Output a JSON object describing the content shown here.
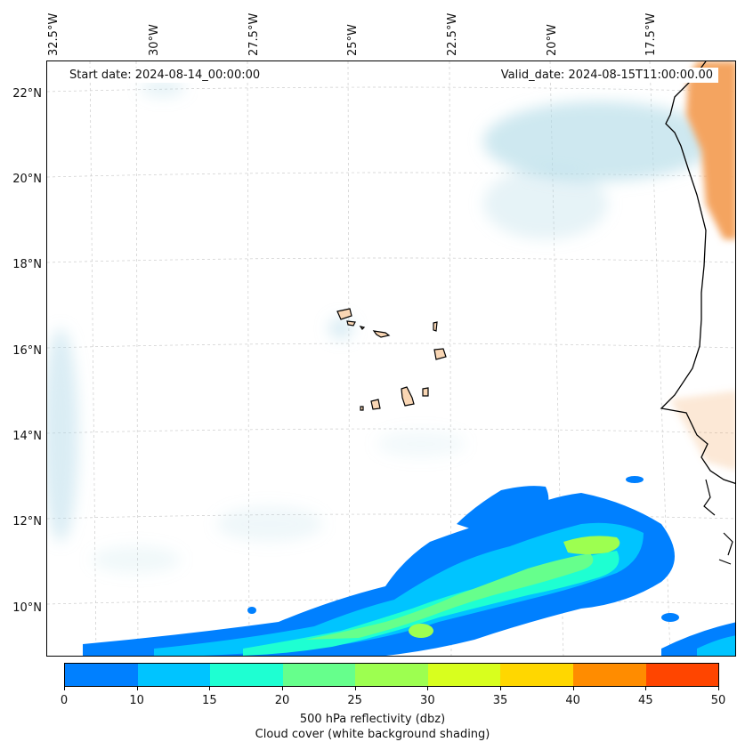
{
  "map": {
    "start_date": "Start date: 2024-08-14_00:00:00",
    "valid_date": "Valid_date: 2024-08-15T11:00:00.00",
    "lon_labels": [
      "32.5°W",
      "30°W",
      "27.5°W",
      "25°W",
      "22.5°W",
      "20°W",
      "17.5°W"
    ],
    "lat_labels": [
      "22°N",
      "20°N",
      "18°N",
      "16°N",
      "14°N",
      "12°N",
      "10°N"
    ],
    "colors": {
      "land_sahara": "#f4a460",
      "cloud": "#add8e6",
      "coast": "#000000"
    }
  },
  "colorbar": {
    "ticks": [
      "0",
      "10",
      "15",
      "20",
      "25",
      "30",
      "35",
      "40",
      "45",
      "50"
    ],
    "colors": [
      "#0080ff",
      "#00c4ff",
      "#1effd2",
      "#66ff8c",
      "#9dff50",
      "#d8ff1e",
      "#ffd700",
      "#ff8c00",
      "#ff4500"
    ],
    "label": "500 hPa reflectivity (dbz)",
    "sublabel": "Cloud cover (white background shading)"
  }
}
